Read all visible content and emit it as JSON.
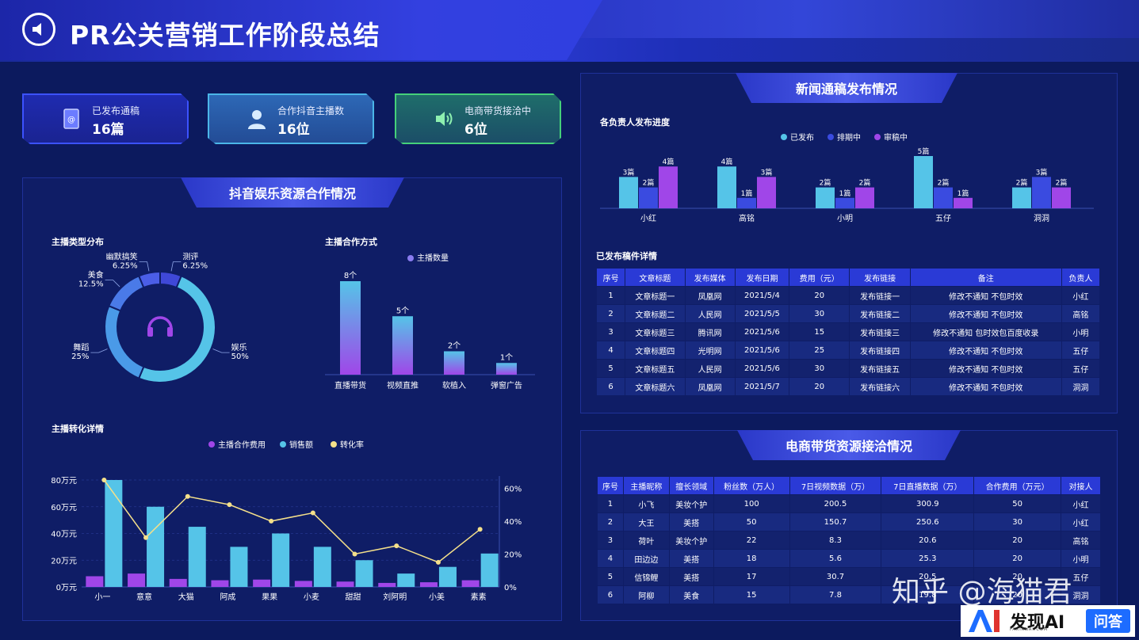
{
  "header": {
    "title": "PR公关营销工作阶段总结"
  },
  "kpis": [
    {
      "label": "已发布通稿",
      "value": "16篇",
      "icon": "address-book-icon"
    },
    {
      "label": "合作抖音主播数",
      "value": "16位",
      "icon": "user-icon"
    },
    {
      "label": "电商带货接洽中",
      "value": "6位",
      "icon": "speaker-icon"
    }
  ],
  "douyin_panel": {
    "title": "抖音娱乐资源合作情况",
    "type_section": "主播类型分布",
    "mode_section": "主播合作方式",
    "conversion_section": "主播转化详情"
  },
  "news_panel": {
    "title": "新闻通稿发布情况",
    "progress_section": "各负责人发布进度",
    "detail_section": "已发布稿件详情",
    "table": {
      "headers": [
        "序号",
        "文章标题",
        "发布媒体",
        "发布日期",
        "费用（元）",
        "发布链接",
        "备注",
        "负责人"
      ],
      "rows": [
        [
          "1",
          "文章标题一",
          "凤凰网",
          "2021/5/4",
          "20",
          "发布链接一",
          "修改不通知 不包时效",
          "小红"
        ],
        [
          "2",
          "文章标题二",
          "人民网",
          "2021/5/5",
          "30",
          "发布链接二",
          "修改不通知 不包时效",
          "高铭"
        ],
        [
          "3",
          "文章标题三",
          "腾讯网",
          "2021/5/6",
          "15",
          "发布链接三",
          "修改不通知 包时效包百度收录",
          "小明"
        ],
        [
          "4",
          "文章标题四",
          "光明网",
          "2021/5/6",
          "25",
          "发布链接四",
          "修改不通知 不包时效",
          "五仔"
        ],
        [
          "5",
          "文章标题五",
          "人民网",
          "2021/5/6",
          "30",
          "发布链接五",
          "修改不通知 不包时效",
          "五仔"
        ],
        [
          "6",
          "文章标题六",
          "凤凰网",
          "2021/5/7",
          "20",
          "发布链接六",
          "修改不通知 不包时效",
          "洞洞"
        ]
      ]
    }
  },
  "ecom_panel": {
    "title": "电商带货资源接洽情况",
    "table": {
      "headers": [
        "序号",
        "主播昵称",
        "擅长领域",
        "粉丝数（万人）",
        "7日视频数据（万）",
        "7日直播数据（万）",
        "合作费用（万元）",
        "对接人"
      ],
      "rows": [
        [
          "1",
          "小飞",
          "美妆个护",
          "100",
          "200.5",
          "300.9",
          "50",
          "小红"
        ],
        [
          "2",
          "大王",
          "美搭",
          "50",
          "150.7",
          "250.6",
          "30",
          "小红"
        ],
        [
          "3",
          "荷叶",
          "美妆个护",
          "22",
          "8.3",
          "20.6",
          "20",
          "高铭"
        ],
        [
          "4",
          "田边边",
          "美搭",
          "18",
          "5.6",
          "25.3",
          "20",
          "小明"
        ],
        [
          "5",
          "信锦鲤",
          "美搭",
          "17",
          "30.7",
          "20.5",
          "20",
          "五仔"
        ],
        [
          "6",
          "阿柳",
          "美食",
          "15",
          "7.8",
          "19.8",
          "20",
          "洞洞"
        ]
      ]
    }
  },
  "watermark": {
    "text": "知乎 @海猫君",
    "badge_text": "发现AI",
    "badge_sub": "FAXIANAI.COM",
    "badge_btn": "问答"
  },
  "colors": {
    "cyan": "#55c4e8",
    "blue": "#3a4be0",
    "purple": "#a046e8",
    "yellow": "#f5e08a",
    "accent": "#2a3ad6"
  },
  "chart_data": [
    {
      "type": "pie",
      "name": "主播类型分布",
      "center_icon": "headphones-icon",
      "slices": [
        {
          "label": "娱乐",
          "value": 50,
          "pct_label": "50%",
          "color": "#55c4e8"
        },
        {
          "label": "舞蹈",
          "value": 25,
          "pct_label": "25%",
          "color": "#4a9ae8"
        },
        {
          "label": "美食",
          "value": 12.5,
          "pct_label": "12.5%",
          "color": "#4a7ae8"
        },
        {
          "label": "幽默搞笑",
          "value": 6.25,
          "pct_label": "6.25%",
          "color": "#4b5ee6"
        },
        {
          "label": "测评",
          "value": 6.25,
          "pct_label": "6.25%",
          "color": "#3f48d8"
        }
      ]
    },
    {
      "type": "bar",
      "name": "主播合作方式",
      "legend": [
        "主播数量"
      ],
      "categories": [
        "直播带货",
        "视频直推",
        "软植入",
        "弹窗广告"
      ],
      "values": [
        8,
        5,
        2,
        1
      ],
      "value_labels": [
        "8个",
        "5个",
        "2个",
        "1个"
      ],
      "ylim": [
        0,
        8
      ]
    },
    {
      "type": "bar",
      "name": "各负责人发布进度",
      "categories": [
        "小红",
        "高铭",
        "小明",
        "五仔",
        "洞洞"
      ],
      "series": [
        {
          "name": "已发布",
          "values": [
            3,
            4,
            2,
            5,
            2
          ],
          "labels": [
            "3篇",
            "4篇",
            "2篇",
            "5篇",
            "2篇"
          ],
          "color": "#55c4e8"
        },
        {
          "name": "排期中",
          "values": [
            2,
            1,
            1,
            2,
            3
          ],
          "labels": [
            "2篇",
            "1篇",
            "1篇",
            "2篇",
            "3篇"
          ],
          "color": "#3a4be0"
        },
        {
          "name": "审稿中",
          "values": [
            4,
            3,
            2,
            1,
            2
          ],
          "labels": [
            "4篇",
            "3篇",
            "2篇",
            "1篇",
            "2篇"
          ],
          "color": "#a046e8"
        }
      ],
      "ylim": [
        0,
        5
      ]
    },
    {
      "type": "bar",
      "name": "主播转化详情",
      "categories": [
        "小一",
        "意意",
        "大猫",
        "阿成",
        "果果",
        "小麦",
        "甜甜",
        "刘阿明",
        "小美",
        "素素"
      ],
      "series": [
        {
          "name": "主播合作费用",
          "values": [
            8,
            10,
            6,
            5,
            5.5,
            4.5,
            4,
            3,
            3.5,
            5
          ],
          "color": "#a046e8"
        },
        {
          "name": "销售额",
          "values": [
            80,
            60,
            45,
            30,
            40,
            30,
            20,
            10,
            15,
            25
          ],
          "color": "#55c4e8"
        },
        {
          "name": "转化率",
          "type": "line",
          "axis": "right",
          "values": [
            65,
            30,
            55,
            50,
            40,
            45,
            20,
            25,
            15,
            35
          ],
          "color": "#f5e08a"
        }
      ],
      "left_axis": {
        "ylim": [
          0,
          80
        ],
        "ticks": [
          "0万元",
          "20万元",
          "40万元",
          "60万元",
          "80万元"
        ]
      },
      "right_axis": {
        "ylim": [
          0,
          65
        ],
        "ticks": [
          "0%",
          "20%",
          "40%",
          "60%"
        ]
      }
    }
  ]
}
